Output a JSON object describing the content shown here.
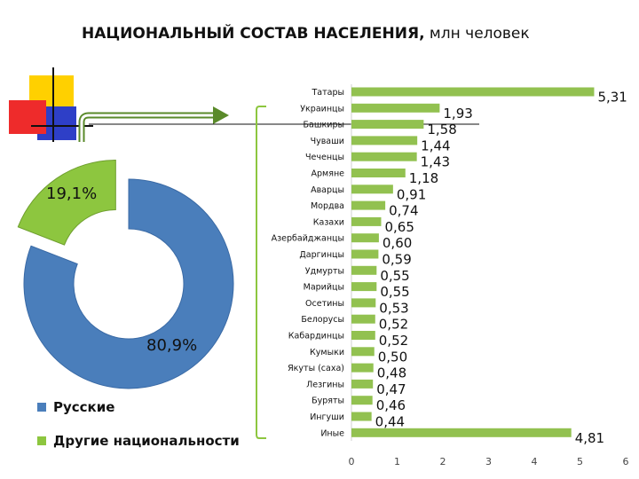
{
  "title": {
    "main": "НАЦИОНАЛЬНЫЙ СОСТАВ НАСЕЛЕНИЯ,",
    "unit": " млн человек"
  },
  "donut": {
    "slices": [
      {
        "name": "Русские",
        "value": 80.9,
        "label": "80,9%",
        "color": "#4a7ebb"
      },
      {
        "name": "Другие национальности",
        "value": 19.1,
        "label": "19,1%",
        "color": "#8dc63f"
      }
    ]
  },
  "legend": [
    {
      "label": "Русские",
      "color": "#4a7ebb"
    },
    {
      "label": "Другие национальности",
      "color": "#8dc63f"
    }
  ],
  "chart_data": {
    "type": "bar",
    "orientation": "horizontal",
    "bar_color": "#92c150",
    "categories": [
      "Татары",
      "Украинцы",
      "Башкиры",
      "Чуваши",
      "Чеченцы",
      "Армяне",
      "Аварцы",
      "Мордва",
      "Казахи",
      "Азербайджанцы",
      "Даргинцы",
      "Удмурты",
      "Марийцы",
      "Осетины",
      "Белорусы",
      "Кабардинцы",
      "Кумыки",
      "Якуты (саха)",
      "Лезгины",
      "Буряты",
      "Ингуши",
      "Иные"
    ],
    "values": [
      5.31,
      1.93,
      1.58,
      1.44,
      1.43,
      1.18,
      0.91,
      0.74,
      0.65,
      0.6,
      0.59,
      0.55,
      0.55,
      0.53,
      0.52,
      0.52,
      0.5,
      0.48,
      0.47,
      0.46,
      0.44,
      4.81
    ],
    "value_labels": [
      "5,31",
      "1,93",
      "1,58",
      "1,44",
      "1,43",
      "1,18",
      "0,91",
      "0,74",
      "0,65",
      "0,60",
      "0,59",
      "0,55",
      "0,55",
      "0,53",
      "0,52",
      "0,52",
      "0,50",
      "0,48",
      "0,47",
      "0,46",
      "0,44",
      "4,81"
    ],
    "xlim": [
      0,
      6
    ],
    "x_ticks": [
      "0",
      "1",
      "2",
      "3",
      "4",
      "5",
      "6"
    ],
    "grid": false
  }
}
